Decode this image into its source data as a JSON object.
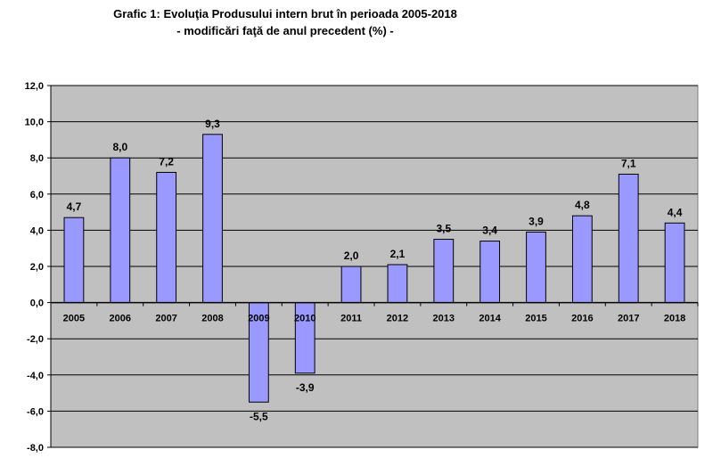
{
  "chart_data": {
    "type": "bar",
    "title": "Grafic 1: Evoluţia Produsului intern brut în perioada 2005-2018",
    "subtitle": "- modificări faţă de anul precedent (%) -",
    "categories": [
      "2005",
      "2006",
      "2007",
      "2008",
      "2009",
      "2010",
      "2011",
      "2012",
      "2013",
      "2014",
      "2015",
      "2016",
      "2017",
      "2018"
    ],
    "values": [
      4.7,
      8.0,
      7.2,
      9.3,
      -5.5,
      -3.9,
      2.0,
      2.1,
      3.5,
      3.4,
      3.9,
      4.8,
      7.1,
      4.4
    ],
    "value_labels": [
      "4,7",
      "8,0",
      "7,2",
      "9,3",
      "-5,5",
      "-3,9",
      "2,0",
      "2,1",
      "3,5",
      "3,4",
      "3,9",
      "4,8",
      "7,1",
      "4,4"
    ],
    "y_ticks": [
      12,
      10,
      8,
      6,
      4,
      2,
      0,
      -2,
      -4,
      -6,
      -8
    ],
    "y_tick_labels": [
      "12,0",
      "10,0",
      "8,0",
      "6,0",
      "4,0",
      "2,0",
      "0,0",
      "-2,0",
      "-4,0",
      "-6,0",
      "-8,0"
    ],
    "ylim": [
      -8,
      12
    ],
    "xlabel": "",
    "ylabel": "",
    "grid": true,
    "legend": "none",
    "colors": {
      "bar_fill": "#9999ff",
      "bar_stroke": "#000000",
      "plot_bg": "#c0c0c0",
      "gridline": "#000000"
    }
  }
}
